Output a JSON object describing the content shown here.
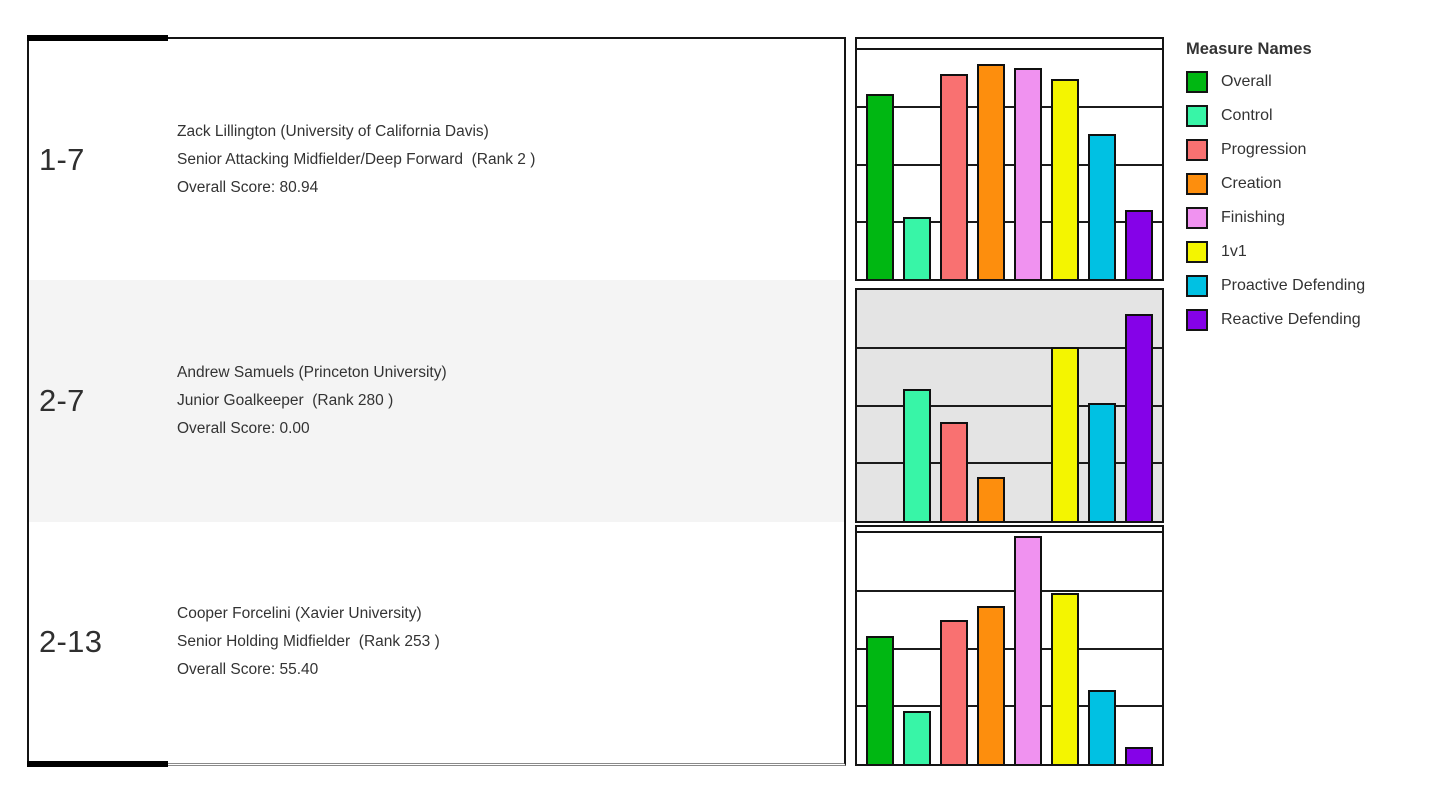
{
  "legend": {
    "title": "Measure Names",
    "items": [
      {
        "label": "Overall",
        "color": "#00b712"
      },
      {
        "label": "Control",
        "color": "#38f5a7"
      },
      {
        "label": "Progression",
        "color": "#f97171"
      },
      {
        "label": "Creation",
        "color": "#fd8e0d"
      },
      {
        "label": "Finishing",
        "color": "#f092f0"
      },
      {
        "label": "1v1",
        "color": "#f4f500"
      },
      {
        "label": "Proactive Defending",
        "color": "#00c1e3"
      },
      {
        "label": "Reactive Defending",
        "color": "#8502e8"
      }
    ]
  },
  "rows": [
    {
      "rank": "1-7",
      "name": "Zack Lillington (University of California Davis)",
      "position": "Senior Attacking Midfielder/Deep Forward  (Rank 2 )",
      "score": "Overall Score: 80.94",
      "row_bg": "#ffffff"
    },
    {
      "rank": "2-7",
      "name": "Andrew Samuels (Princeton University)",
      "position": "Junior Goalkeeper  (Rank 280 )",
      "score": "Overall Score: 0.00",
      "row_bg": "#f4f4f4"
    },
    {
      "rank": "2-13",
      "name": "Cooper Forcelini (Xavier University)",
      "position": "Senior Holding Midfielder  (Rank 253 )",
      "score": "Overall Score: 55.40",
      "row_bg": "#ffffff"
    }
  ],
  "chart_data": [
    {
      "type": "bar",
      "row_label": "1-7",
      "categories": [
        "Overall",
        "Control",
        "Progression",
        "Creation",
        "Finishing",
        "1v1",
        "Proactive Defending",
        "Reactive Defending"
      ],
      "values": [
        80.94,
        27,
        89.5,
        94,
        92,
        87.5,
        63.5,
        30
      ],
      "ylim": [
        0,
        100
      ],
      "gridlines": [
        25,
        50,
        75
      ],
      "plot_bg": "#ffffff",
      "legend_position": "right"
    },
    {
      "type": "bar",
      "row_label": "2-7",
      "categories": [
        "Overall",
        "Control",
        "Progression",
        "Creation",
        "Finishing",
        "1v1",
        "Proactive Defending",
        "Reactive Defending"
      ],
      "values": [
        0,
        57,
        43,
        19,
        0,
        75.5,
        51,
        89.5
      ],
      "ylim": [
        0,
        100
      ],
      "gridlines": [
        25,
        50,
        75
      ],
      "plot_bg": "#e4e4e4",
      "legend_position": "right"
    },
    {
      "type": "bar",
      "row_label": "2-13",
      "categories": [
        "Overall",
        "Control",
        "Progression",
        "Creation",
        "Finishing",
        "1v1",
        "Proactive Defending",
        "Reactive Defending"
      ],
      "values": [
        55.4,
        23,
        62.5,
        68.5,
        98.5,
        74,
        32,
        7.5
      ],
      "ylim": [
        0,
        100
      ],
      "gridlines": [
        25,
        50,
        75
      ],
      "plot_bg": "#ffffff",
      "legend_position": "right"
    }
  ]
}
